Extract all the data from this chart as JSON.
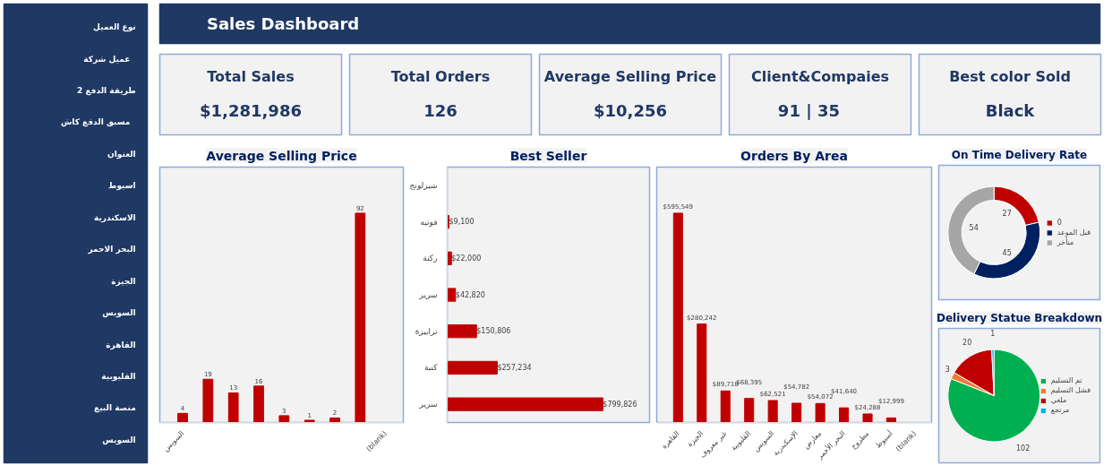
{
  "chart_data": [
    {
      "type": "other",
      "title": "Sales Dashboard"
    },
    {
      "type": "other",
      "title": "Total Sales",
      "annotations": [
        "$1,281,986"
      ]
    },
    {
      "type": "other",
      "title": "Total Orders",
      "annotations": [
        "126"
      ]
    },
    {
      "type": "other",
      "title": "Average Selling Price",
      "annotations": [
        "$10,256"
      ]
    },
    {
      "type": "other",
      "title": "Client&Compaies",
      "annotations": [
        "91   |   35"
      ]
    },
    {
      "type": "other",
      "title": "Best color Sold",
      "annotations": [
        "Black"
      ]
    },
    {
      "type": "other",
      "annotations": [
        "نوع العميل",
        "عميل   شركة",
        "طريقة الدفع 2",
        "مسبق الدفع   كاش",
        "العنوان",
        "اسيوط",
        "الاسكندرية",
        "البحر الاحمر",
        "الجيزة",
        "السويس",
        "القاهرة",
        "القليوبية",
        "منصة البيع",
        "السويس"
      ]
    },
    {
      "type": "bar",
      "title": "Average Selling Price",
      "categories": [
        "السويس",
        null,
        null,
        null,
        null,
        null,
        null,
        null,
        "(blank)"
      ],
      "values": [
        4,
        19,
        13,
        16,
        3,
        1,
        2,
        92,
        null
      ],
      "color": "#c00000",
      "data_labels": true
    },
    {
      "type": "bar",
      "orientation": "horizontal",
      "title": "Best Seller",
      "categories": [
        "شيزلونج",
        "فوتيه",
        "ركنة",
        "سرير",
        "ترابيزة",
        "كنبة",
        "سرير"
      ],
      "values": [
        null,
        9100,
        22000,
        42820,
        150806,
        257234,
        799826
      ],
      "value_labels": [
        null,
        "$9,100",
        "$22,000",
        "$42,820",
        "$150,806",
        "$257,234",
        "$799,826"
      ],
      "color": "#c00000"
    },
    {
      "type": "bar",
      "title": "Orders By Area",
      "categories": [
        "القاهرة",
        "الجيزة",
        "غير معروف",
        "القليوبية",
        "السويس",
        "الإسكندرية",
        "معارض",
        "البحر الأحمر",
        "مطروح",
        "أسيوط",
        "(blank)"
      ],
      "values": [
        595549,
        280242,
        89718,
        68395,
        62521,
        54782,
        54072,
        41640,
        24288,
        12999,
        null
      ],
      "value_labels": [
        "$595,549",
        "$280,242",
        "$89,718",
        "$68,395",
        "$62,521",
        "$54,782",
        "$54,072",
        "$41,640",
        "$24,288",
        "$12,999",
        null
      ],
      "color": "#c00000"
    },
    {
      "type": "donut",
      "title": "On Time Delivery Rate",
      "categories": [
        "0",
        "قبل الموعد",
        "متأخر"
      ],
      "values": [
        27,
        45,
        54
      ],
      "colors": [
        "#c00000",
        "#002060",
        "#a6a6a6"
      ],
      "data_labels": true,
      "legend": "right"
    },
    {
      "type": "pie",
      "title": "Delivery Statue Breakdown",
      "categories": [
        "تم التسليم",
        "فشل التسليم",
        "ملغي",
        "مرتجع"
      ],
      "values": [
        102,
        3,
        20,
        1
      ],
      "colors": [
        "#00b050",
        "#ed7d31",
        "#c00000",
        "#00b0f0"
      ],
      "data_labels": true,
      "legend": "right"
    }
  ]
}
